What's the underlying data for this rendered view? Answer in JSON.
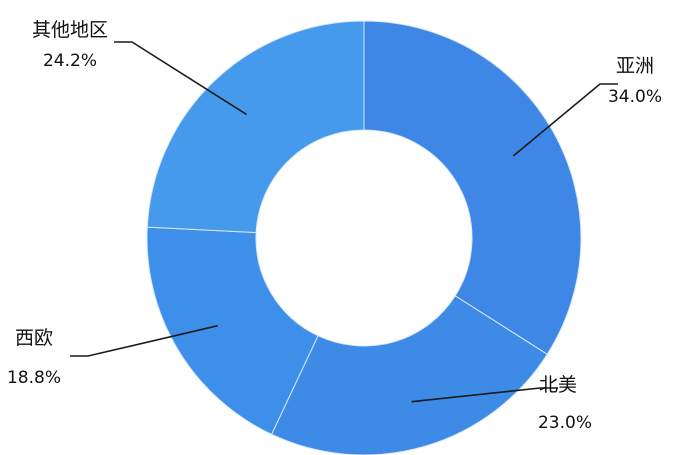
{
  "chart_data": {
    "type": "pie",
    "variant": "donut",
    "slices": [
      {
        "label": "亚洲",
        "value": 34.0,
        "display": "34.0%",
        "color": "#3f87e6"
      },
      {
        "label": "北美",
        "value": 23.0,
        "display": "23.0%",
        "color": "#3e8ae7"
      },
      {
        "label": "西欧",
        "value": 18.8,
        "display": "18.8%",
        "color": "#3d8fe9"
      },
      {
        "label": "其他地区",
        "value": 24.2,
        "display": "24.2%",
        "color": "#459aec"
      }
    ],
    "start_angle": "12 o'clock",
    "direction": "clockwise",
    "legend": "none"
  }
}
